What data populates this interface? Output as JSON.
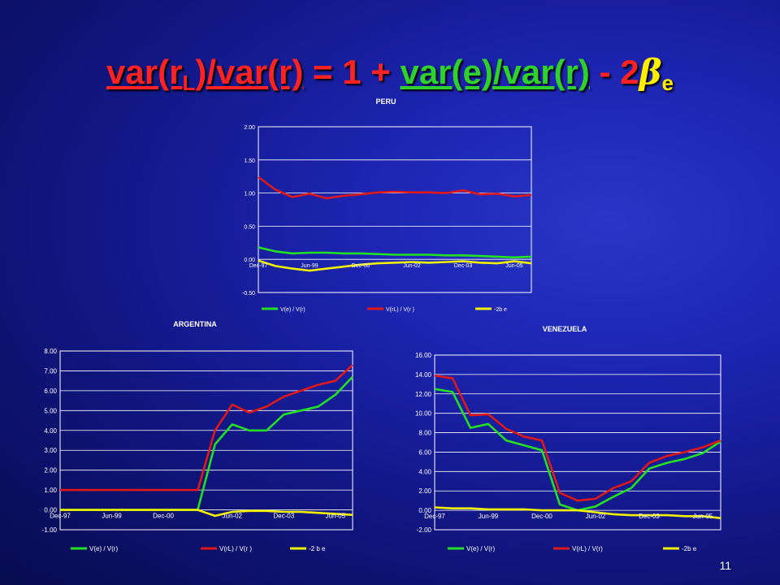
{
  "slide": {
    "title": {
      "lhs": "var(r",
      "lhs_sub": "L",
      "lhs_end": ")/var(r)",
      "eq": "= 1 + ",
      "mid": "var(e)/var(r)",
      "minus": " - 2",
      "beta": "β",
      "beta_sub": "e"
    },
    "page_number": "11",
    "colors": {
      "v_e": "#22e022",
      "v_rl": "#e01818",
      "b_e": "#f0f000",
      "frame": "#ffffff",
      "title_red": "#ff2222",
      "title_green": "#2ed12e",
      "title_yellow": "#ffee00"
    }
  },
  "chart_data": [
    {
      "type": "line",
      "title": "PERU",
      "x": [
        "Dec-97",
        "Jun-98",
        "Dec-98",
        "Jun-99",
        "Dec-99",
        "Jun-00",
        "Dec-00",
        "Jun-01",
        "Dec-01",
        "Jun-02",
        "Dec-02",
        "Jun-03",
        "Dec-03",
        "Jun-04",
        "Dec-04",
        "Jun-05",
        "Dec-05"
      ],
      "x_tick_labels": [
        "Dec-97",
        "Jun-99",
        "Dec-00",
        "Jun-02",
        "Dec-03",
        "Jun-05"
      ],
      "y_tick_labels": [
        "-0.50",
        "0.00",
        "0.50",
        "1.00",
        "1.50",
        "2.00"
      ],
      "ylim": [
        -0.5,
        2.0
      ],
      "grid": "horizontal",
      "legend": "bottom",
      "series": [
        {
          "name": "V(e) / V(r)",
          "values": [
            0.18,
            0.12,
            0.09,
            0.1,
            0.1,
            0.09,
            0.09,
            0.08,
            0.07,
            0.07,
            0.07,
            0.06,
            0.06,
            0.05,
            0.04,
            0.03,
            0.04
          ]
        },
        {
          "name": "V(rL) / V(r )",
          "values": [
            1.24,
            1.05,
            0.94,
            0.99,
            0.92,
            0.96,
            0.98,
            1.01,
            1.02,
            1.01,
            1.01,
            1.0,
            1.04,
            0.98,
            0.99,
            0.95,
            0.97
          ]
        },
        {
          "name": "-2b e",
          "values": [
            -0.02,
            -0.1,
            -0.14,
            -0.17,
            -0.14,
            -0.11,
            -0.08,
            -0.06,
            -0.05,
            -0.04,
            -0.05,
            -0.04,
            -0.03,
            -0.05,
            -0.06,
            -0.03,
            -0.06
          ]
        }
      ]
    },
    {
      "type": "line",
      "title": "ARGENTINA",
      "x": [
        "Dec-97",
        "Jun-98",
        "Dec-98",
        "Jun-99",
        "Dec-99",
        "Jun-00",
        "Dec-00",
        "Jun-01",
        "Dec-01",
        "Jan-02",
        "Jun-02",
        "Dec-02",
        "Jun-03",
        "Dec-03",
        "Jun-04",
        "Dec-04",
        "Jun-05",
        "Dec-05"
      ],
      "x_tick_labels": [
        "Dec-97",
        "Jun-99",
        "Dec-00",
        "Jun-02",
        "Dec-03",
        "Jun-05"
      ],
      "y_tick_labels": [
        "-1.00",
        "0.00",
        "1.00",
        "2.00",
        "3.00",
        "4.00",
        "5.00",
        "6.00",
        "7.00",
        "8.00"
      ],
      "ylim": [
        -1.0,
        8.0
      ],
      "grid": "horizontal",
      "legend": "bottom",
      "series": [
        {
          "name": "V(e) / V(r)",
          "values": [
            0,
            0,
            0,
            0,
            0,
            0,
            0,
            0,
            0,
            3.3,
            4.3,
            4.0,
            4.0,
            4.8,
            5.0,
            5.2,
            5.8,
            6.7
          ]
        },
        {
          "name": "V(rL) / V(r )",
          "values": [
            1,
            1,
            1,
            1,
            1,
            1,
            1,
            1,
            1,
            4.0,
            5.3,
            4.9,
            5.2,
            5.7,
            6.0,
            6.3,
            6.5,
            7.3
          ]
        },
        {
          "name": "-2 b e",
          "values": [
            0,
            0,
            0,
            0,
            0,
            0,
            0,
            0,
            0,
            -0.3,
            -0.1,
            -0.05,
            -0.05,
            -0.1,
            -0.1,
            -0.15,
            -0.2,
            -0.25
          ]
        }
      ]
    },
    {
      "type": "line",
      "title": "VENEZUELA",
      "x": [
        "Dec-97",
        "Jun-98",
        "Dec-98",
        "Jun-99",
        "Dec-99",
        "Jun-00",
        "Dec-00",
        "Jun-01",
        "Dec-01",
        "Jun-02",
        "Dec-02",
        "Jun-03",
        "Dec-03",
        "Jun-04",
        "Dec-04",
        "Jun-05",
        "Dec-05"
      ],
      "x_tick_labels": [
        "Dec-97",
        "Jun-99",
        "Dec-00",
        "Jun-02",
        "Dec-03",
        "Jun-05"
      ],
      "y_tick_labels": [
        "-2.00",
        "0.00",
        "2.00",
        "4.00",
        "6.00",
        "8.00",
        "10.00",
        "12.00",
        "14.00",
        "16.00"
      ],
      "ylim": [
        -2.0,
        16.0
      ],
      "grid": "horizontal",
      "legend": "bottom",
      "series": [
        {
          "name": "V(e) / V(r)",
          "values": [
            12.5,
            12.2,
            8.5,
            8.9,
            7.2,
            6.7,
            6.2,
            0.6,
            0.0,
            0.4,
            1.4,
            2.3,
            4.3,
            4.9,
            5.3,
            5.9,
            7.1
          ]
        },
        {
          "name": "V(rL) / V(r)",
          "values": [
            13.9,
            13.6,
            9.8,
            9.9,
            8.4,
            7.6,
            7.2,
            1.8,
            1.0,
            1.2,
            2.3,
            3.0,
            4.9,
            5.6,
            6.0,
            6.5,
            7.2
          ]
        },
        {
          "name": "-2b e",
          "values": [
            0.3,
            0.2,
            0.2,
            0.1,
            0.1,
            0.1,
            0.0,
            0.0,
            0.0,
            -0.2,
            -0.4,
            -0.5,
            -0.5,
            -0.5,
            -0.6,
            -0.6,
            -0.8
          ]
        }
      ]
    }
  ]
}
